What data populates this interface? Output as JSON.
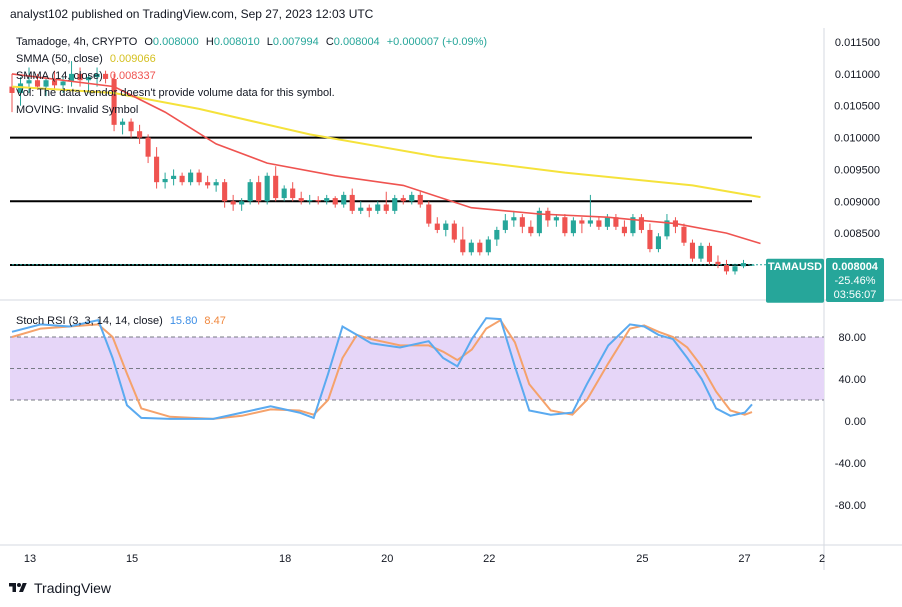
{
  "header": {
    "publisher_line": "analyst102 published on TradingView.com, Sep 27, 2023 12:03 UTC"
  },
  "legend": {
    "symbol_line_prefix": "Tamadoge, 4h, CRYPTO",
    "ohlc": [
      {
        "label": "O",
        "value": "0.008000"
      },
      {
        "label": "H",
        "value": "0.008010"
      },
      {
        "label": "L",
        "value": "0.007994"
      },
      {
        "label": "C",
        "value": "0.008004"
      }
    ],
    "change": "+0.000007 (+0.09%)",
    "smma50_label": "SMMA (50, close)",
    "smma50_value": "0.009066",
    "smma14_label": "SMMA (14, close)",
    "smma14_value": "0.008337",
    "vol_note": "Vol: The data vendor doesn't provide volume data for this symbol.",
    "moving_note": "MOVING: Invalid Symbol"
  },
  "price_tag": {
    "symbol": "TAMAUSD",
    "price": "0.008004",
    "change": "-25.46%",
    "countdown": "03:56:07"
  },
  "stoch": {
    "label": "Stoch RSI (3, 3, 14, 14, close)",
    "k_value": "15.80",
    "d_value": "8.47"
  },
  "price_axis_labels": [
    "0.011500",
    "0.011000",
    "0.010500",
    "0.010000",
    "0.009500",
    "0.009000",
    "0.008500",
    "0.008000"
  ],
  "stoch_axis_labels": [
    "80.00",
    "40.00",
    "0.00",
    "-40.00",
    "-80.00"
  ],
  "time_axis_labels": [
    "13",
    "15",
    "18",
    "20",
    "22",
    "25",
    "27",
    "2"
  ],
  "footer": {
    "brand": "TradingView"
  },
  "colors": {
    "up": "#26a69a",
    "down": "#ef5350",
    "smma50": "#f5e23b",
    "smma14": "#ef5350",
    "stoch_k": "#5aaaf0",
    "stoch_d": "#f5a26b",
    "stoch_band": "#e6d6f8",
    "tag_bg": "#26a69a"
  },
  "chart_data": [
    {
      "type": "candlestick",
      "title": "Tamadoge, 4h, CRYPTO",
      "ylim": [
        0.0077,
        0.0117
      ],
      "horizontal_lines": [
        0.01,
        0.009,
        0.008
      ],
      "candles": [
        {
          "o": 0.0108,
          "h": 0.011,
          "l": 0.0104,
          "c": 0.0107
        },
        {
          "o": 0.0107,
          "h": 0.01095,
          "l": 0.0105,
          "c": 0.01085
        },
        {
          "o": 0.01085,
          "h": 0.0111,
          "l": 0.0107,
          "c": 0.0109
        },
        {
          "o": 0.0109,
          "h": 0.011,
          "l": 0.01075,
          "c": 0.0108
        },
        {
          "o": 0.0108,
          "h": 0.01095,
          "l": 0.01065,
          "c": 0.0109
        },
        {
          "o": 0.0109,
          "h": 0.01105,
          "l": 0.01075,
          "c": 0.01082
        },
        {
          "o": 0.01082,
          "h": 0.01095,
          "l": 0.0107,
          "c": 0.01088
        },
        {
          "o": 0.01088,
          "h": 0.0112,
          "l": 0.0108,
          "c": 0.011
        },
        {
          "o": 0.011,
          "h": 0.0111,
          "l": 0.0108,
          "c": 0.0109
        },
        {
          "o": 0.0109,
          "h": 0.011,
          "l": 0.0107,
          "c": 0.01095
        },
        {
          "o": 0.01095,
          "h": 0.0111,
          "l": 0.0108,
          "c": 0.011
        },
        {
          "o": 0.011,
          "h": 0.01105,
          "l": 0.01085,
          "c": 0.01092
        },
        {
          "o": 0.01092,
          "h": 0.011,
          "l": 0.0101,
          "c": 0.0102
        },
        {
          "o": 0.0102,
          "h": 0.0103,
          "l": 0.01005,
          "c": 0.01025
        },
        {
          "o": 0.01025,
          "h": 0.0103,
          "l": 0.01,
          "c": 0.0101
        },
        {
          "o": 0.0101,
          "h": 0.0102,
          "l": 0.0099,
          "c": 0.01
        },
        {
          "o": 0.01,
          "h": 0.01005,
          "l": 0.0096,
          "c": 0.0097
        },
        {
          "o": 0.0097,
          "h": 0.00985,
          "l": 0.0092,
          "c": 0.0093
        },
        {
          "o": 0.0093,
          "h": 0.00945,
          "l": 0.0092,
          "c": 0.00935
        },
        {
          "o": 0.00935,
          "h": 0.0095,
          "l": 0.00925,
          "c": 0.0094
        },
        {
          "o": 0.0094,
          "h": 0.00945,
          "l": 0.00925,
          "c": 0.0093
        },
        {
          "o": 0.0093,
          "h": 0.0095,
          "l": 0.00925,
          "c": 0.00945
        },
        {
          "o": 0.00945,
          "h": 0.0095,
          "l": 0.00925,
          "c": 0.0093
        },
        {
          "o": 0.0093,
          "h": 0.0094,
          "l": 0.0092,
          "c": 0.00925
        },
        {
          "o": 0.00925,
          "h": 0.00935,
          "l": 0.00915,
          "c": 0.0093
        },
        {
          "o": 0.0093,
          "h": 0.00935,
          "l": 0.0089,
          "c": 0.009
        },
        {
          "o": 0.009,
          "h": 0.0091,
          "l": 0.00885,
          "c": 0.00895
        },
        {
          "o": 0.00895,
          "h": 0.00905,
          "l": 0.00885,
          "c": 0.009
        },
        {
          "o": 0.009,
          "h": 0.00935,
          "l": 0.00895,
          "c": 0.0093
        },
        {
          "o": 0.0093,
          "h": 0.0094,
          "l": 0.00895,
          "c": 0.009
        },
        {
          "o": 0.009,
          "h": 0.00945,
          "l": 0.00895,
          "c": 0.0094
        },
        {
          "o": 0.0094,
          "h": 0.00955,
          "l": 0.009,
          "c": 0.00905
        },
        {
          "o": 0.00905,
          "h": 0.00925,
          "l": 0.009,
          "c": 0.0092
        },
        {
          "o": 0.0092,
          "h": 0.0093,
          "l": 0.009,
          "c": 0.00905
        },
        {
          "o": 0.00905,
          "h": 0.00915,
          "l": 0.00895,
          "c": 0.009
        },
        {
          "o": 0.009,
          "h": 0.0091,
          "l": 0.00895,
          "c": 0.00902
        },
        {
          "o": 0.00902,
          "h": 0.00908,
          "l": 0.00895,
          "c": 0.009
        },
        {
          "o": 0.009,
          "h": 0.0091,
          "l": 0.00895,
          "c": 0.00905
        },
        {
          "o": 0.00905,
          "h": 0.00908,
          "l": 0.0089,
          "c": 0.00895
        },
        {
          "o": 0.00895,
          "h": 0.00915,
          "l": 0.0089,
          "c": 0.0091
        },
        {
          "o": 0.0091,
          "h": 0.0092,
          "l": 0.0088,
          "c": 0.00885
        },
        {
          "o": 0.00885,
          "h": 0.009,
          "l": 0.0088,
          "c": 0.0089
        },
        {
          "o": 0.0089,
          "h": 0.00895,
          "l": 0.00875,
          "c": 0.00885
        },
        {
          "o": 0.00885,
          "h": 0.009,
          "l": 0.0088,
          "c": 0.00895
        },
        {
          "o": 0.00895,
          "h": 0.00915,
          "l": 0.0088,
          "c": 0.00885
        },
        {
          "o": 0.00885,
          "h": 0.0091,
          "l": 0.0088,
          "c": 0.00905
        },
        {
          "o": 0.00905,
          "h": 0.0091,
          "l": 0.00895,
          "c": 0.009
        },
        {
          "o": 0.009,
          "h": 0.00915,
          "l": 0.00895,
          "c": 0.0091
        },
        {
          "o": 0.0091,
          "h": 0.00915,
          "l": 0.0089,
          "c": 0.00895
        },
        {
          "o": 0.00895,
          "h": 0.009,
          "l": 0.0086,
          "c": 0.00865
        },
        {
          "o": 0.00865,
          "h": 0.00875,
          "l": 0.0085,
          "c": 0.00855
        },
        {
          "o": 0.00855,
          "h": 0.0087,
          "l": 0.00845,
          "c": 0.00865
        },
        {
          "o": 0.00865,
          "h": 0.0087,
          "l": 0.00835,
          "c": 0.0084
        },
        {
          "o": 0.0084,
          "h": 0.0086,
          "l": 0.00815,
          "c": 0.0082
        },
        {
          "o": 0.0082,
          "h": 0.0084,
          "l": 0.00815,
          "c": 0.00835
        },
        {
          "o": 0.00835,
          "h": 0.0084,
          "l": 0.00815,
          "c": 0.0082
        },
        {
          "o": 0.0082,
          "h": 0.00845,
          "l": 0.00815,
          "c": 0.0084
        },
        {
          "o": 0.0084,
          "h": 0.0086,
          "l": 0.0083,
          "c": 0.00855
        },
        {
          "o": 0.00855,
          "h": 0.0088,
          "l": 0.0085,
          "c": 0.0087
        },
        {
          "o": 0.0087,
          "h": 0.00885,
          "l": 0.0086,
          "c": 0.00875
        },
        {
          "o": 0.00875,
          "h": 0.0088,
          "l": 0.0085,
          "c": 0.0086
        },
        {
          "o": 0.0086,
          "h": 0.0087,
          "l": 0.00845,
          "c": 0.0085
        },
        {
          "o": 0.0085,
          "h": 0.0089,
          "l": 0.00845,
          "c": 0.00885
        },
        {
          "o": 0.00885,
          "h": 0.0089,
          "l": 0.0086,
          "c": 0.0087
        },
        {
          "o": 0.0087,
          "h": 0.0088,
          "l": 0.0086,
          "c": 0.00875
        },
        {
          "o": 0.00875,
          "h": 0.0088,
          "l": 0.00845,
          "c": 0.0085
        },
        {
          "o": 0.0085,
          "h": 0.00875,
          "l": 0.00845,
          "c": 0.0087
        },
        {
          "o": 0.0087,
          "h": 0.00875,
          "l": 0.0085,
          "c": 0.00865
        },
        {
          "o": 0.00865,
          "h": 0.0091,
          "l": 0.0086,
          "c": 0.0087
        },
        {
          "o": 0.0087,
          "h": 0.00875,
          "l": 0.00855,
          "c": 0.0086
        },
        {
          "o": 0.0086,
          "h": 0.0088,
          "l": 0.00855,
          "c": 0.00875
        },
        {
          "o": 0.00875,
          "h": 0.0088,
          "l": 0.00855,
          "c": 0.0086
        },
        {
          "o": 0.0086,
          "h": 0.0087,
          "l": 0.00845,
          "c": 0.0085
        },
        {
          "o": 0.0085,
          "h": 0.0088,
          "l": 0.00845,
          "c": 0.00875
        },
        {
          "o": 0.00875,
          "h": 0.0088,
          "l": 0.0085,
          "c": 0.00855
        },
        {
          "o": 0.00855,
          "h": 0.00865,
          "l": 0.0082,
          "c": 0.00825
        },
        {
          "o": 0.00825,
          "h": 0.0085,
          "l": 0.0082,
          "c": 0.00845
        },
        {
          "o": 0.00845,
          "h": 0.0088,
          "l": 0.0084,
          "c": 0.0087
        },
        {
          "o": 0.0087,
          "h": 0.00875,
          "l": 0.0085,
          "c": 0.0086
        },
        {
          "o": 0.0086,
          "h": 0.00865,
          "l": 0.0083,
          "c": 0.00835
        },
        {
          "o": 0.00835,
          "h": 0.0084,
          "l": 0.00805,
          "c": 0.0081
        },
        {
          "o": 0.0081,
          "h": 0.00835,
          "l": 0.00805,
          "c": 0.0083
        },
        {
          "o": 0.0083,
          "h": 0.00835,
          "l": 0.008,
          "c": 0.00805
        },
        {
          "o": 0.00805,
          "h": 0.00815,
          "l": 0.00795,
          "c": 0.008
        },
        {
          "o": 0.008,
          "h": 0.00808,
          "l": 0.00785,
          "c": 0.0079
        },
        {
          "o": 0.0079,
          "h": 0.00802,
          "l": 0.00785,
          "c": 0.00798
        },
        {
          "o": 0.00798,
          "h": 0.00808,
          "l": 0.00795,
          "c": 0.00803
        },
        {
          "o": 0.008,
          "h": 0.00801,
          "l": 0.007994,
          "c": 0.008004
        }
      ],
      "smma50": [
        [
          0,
          0.0108
        ],
        [
          12,
          0.0107
        ],
        [
          22,
          0.01045
        ],
        [
          35,
          0.01005
        ],
        [
          50,
          0.0097
        ],
        [
          65,
          0.00945
        ],
        [
          80,
          0.00925
        ],
        [
          88,
          0.009066
        ]
      ],
      "smma14": [
        [
          0,
          0.011
        ],
        [
          12,
          0.0108
        ],
        [
          18,
          0.0104
        ],
        [
          24,
          0.0099
        ],
        [
          30,
          0.0096
        ],
        [
          38,
          0.0094
        ],
        [
          46,
          0.00925
        ],
        [
          54,
          0.0089
        ],
        [
          62,
          0.0088
        ],
        [
          70,
          0.00875
        ],
        [
          78,
          0.00865
        ],
        [
          84,
          0.0085
        ],
        [
          88,
          0.008337
        ]
      ]
    },
    {
      "type": "line",
      "title": "Stoch RSI (3, 3, 14, 14, close)",
      "ylim": [
        -100,
        100
      ],
      "bands": [
        80,
        20
      ],
      "series": [
        {
          "name": "K",
          "values": [
            [
              0,
              85
            ],
            [
              4,
              92
            ],
            [
              8,
              90
            ],
            [
              12,
              96
            ],
            [
              14,
              60
            ],
            [
              16,
              15
            ],
            [
              18,
              3
            ],
            [
              22,
              2
            ],
            [
              28,
              2
            ],
            [
              32,
              8
            ],
            [
              36,
              14
            ],
            [
              40,
              8
            ],
            [
              42,
              3
            ],
            [
              44,
              45
            ],
            [
              46,
              90
            ],
            [
              48,
              82
            ],
            [
              50,
              74
            ],
            [
              54,
              70
            ],
            [
              58,
              76
            ],
            [
              60,
              60
            ],
            [
              62,
              52
            ],
            [
              64,
              78
            ],
            [
              66,
              98
            ],
            [
              68,
              97
            ],
            [
              70,
              52
            ],
            [
              72,
              10
            ],
            [
              75,
              6
            ],
            [
              78,
              8
            ],
            [
              80,
              35
            ],
            [
              83,
              72
            ],
            [
              86,
              92
            ],
            [
              88,
              90
            ],
            [
              90,
              82
            ],
            [
              92,
              78
            ],
            [
              94,
              60
            ],
            [
              96,
              40
            ],
            [
              98,
              12
            ],
            [
              100,
              5
            ],
            [
              102,
              8
            ],
            [
              103,
              15.8
            ]
          ]
        },
        {
          "name": "D",
          "values": [
            [
              0,
              80
            ],
            [
              4,
              88
            ],
            [
              8,
              90
            ],
            [
              12,
              92
            ],
            [
              14,
              80
            ],
            [
              16,
              45
            ],
            [
              18,
              12
            ],
            [
              22,
              4
            ],
            [
              28,
              2
            ],
            [
              32,
              5
            ],
            [
              36,
              11
            ],
            [
              40,
              10
            ],
            [
              42,
              6
            ],
            [
              44,
              20
            ],
            [
              46,
              60
            ],
            [
              48,
              82
            ],
            [
              50,
              78
            ],
            [
              54,
              72
            ],
            [
              58,
              72
            ],
            [
              60,
              66
            ],
            [
              62,
              58
            ],
            [
              64,
              68
            ],
            [
              66,
              88
            ],
            [
              68,
              96
            ],
            [
              70,
              75
            ],
            [
              72,
              35
            ],
            [
              75,
              10
            ],
            [
              78,
              6
            ],
            [
              80,
              20
            ],
            [
              83,
              55
            ],
            [
              86,
              88
            ],
            [
              88,
              91
            ],
            [
              90,
              85
            ],
            [
              92,
              80
            ],
            [
              94,
              70
            ],
            [
              96,
              52
            ],
            [
              98,
              28
            ],
            [
              100,
              10
            ],
            [
              102,
              6
            ],
            [
              103,
              8.47
            ]
          ]
        }
      ]
    }
  ]
}
